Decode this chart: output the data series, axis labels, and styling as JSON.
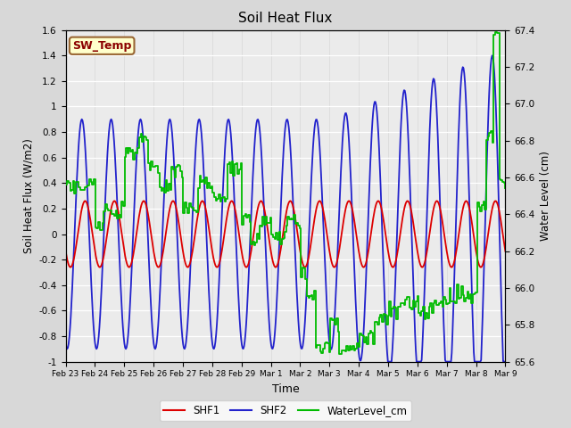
{
  "title": "Soil Heat Flux",
  "xlabel": "Time",
  "ylabel_left": "Soil Heat Flux (W/m2)",
  "ylabel_right": "Water Level (cm)",
  "ylim_left": [
    -1.0,
    1.6
  ],
  "ylim_right": [
    65.6,
    67.4
  ],
  "yticks_left": [
    -1.0,
    -0.8,
    -0.6,
    -0.4,
    -0.2,
    0.0,
    0.2,
    0.4,
    0.6,
    0.8,
    1.0,
    1.2,
    1.4,
    1.6
  ],
  "yticks_right": [
    65.6,
    65.8,
    66.0,
    66.2,
    66.4,
    66.6,
    66.8,
    67.0,
    67.2,
    67.4
  ],
  "xtick_labels": [
    "Feb 23",
    "Feb 24",
    "Feb 25",
    "Feb 26",
    "Feb 27",
    "Feb 28",
    "Feb 29",
    "Mar 1",
    "Mar 2",
    "Mar 3",
    "Mar 4",
    "Mar 5",
    "Mar 6",
    "Mar 7",
    "Mar 8",
    "Mar 9"
  ],
  "shf1_color": "#dd0000",
  "shf2_color": "#2222cc",
  "water_color": "#00bb00",
  "background_color": "#d8d8d8",
  "plot_bg_color": "#ebebeb",
  "grid_color": "#ffffff",
  "annotation_text": "SW_Temp",
  "annotation_fgcolor": "#8b0000",
  "annotation_bgcolor": "#ffffcc",
  "annotation_edgecolor": "#996633",
  "legend_labels": [
    "SHF1",
    "SHF2",
    "WaterLevel_cm"
  ],
  "shf1_lw": 1.3,
  "shf2_lw": 1.3,
  "water_lw": 1.3
}
